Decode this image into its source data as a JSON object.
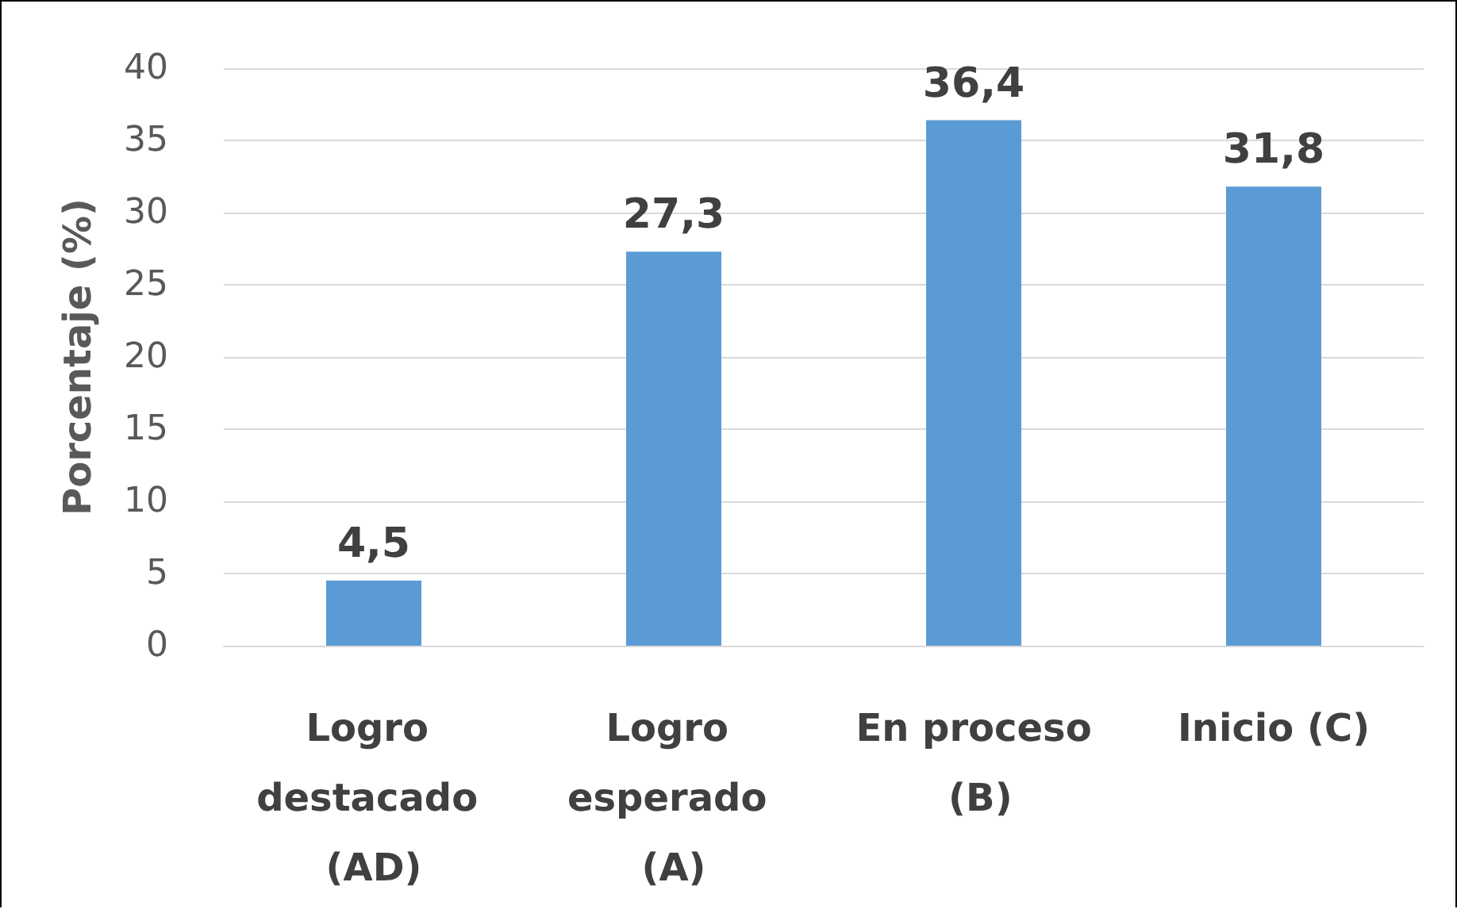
{
  "chart_data": {
    "type": "bar",
    "ylabel": "Porcentaje (%)",
    "categories": [
      "Logro destacado (AD)",
      "Logro esperado (A)",
      "En proceso (B)",
      "Inicio (C)"
    ],
    "values": [
      4.5,
      27.3,
      36.4,
      31.8
    ],
    "value_labels": [
      "4,5",
      "27,3",
      "36,4",
      "31,8"
    ],
    "color": "#5b9bd5",
    "ylim": [
      0,
      40
    ],
    "yticks": [
      0,
      5,
      10,
      15,
      20,
      25,
      30,
      35,
      40
    ],
    "grid": "y"
  }
}
